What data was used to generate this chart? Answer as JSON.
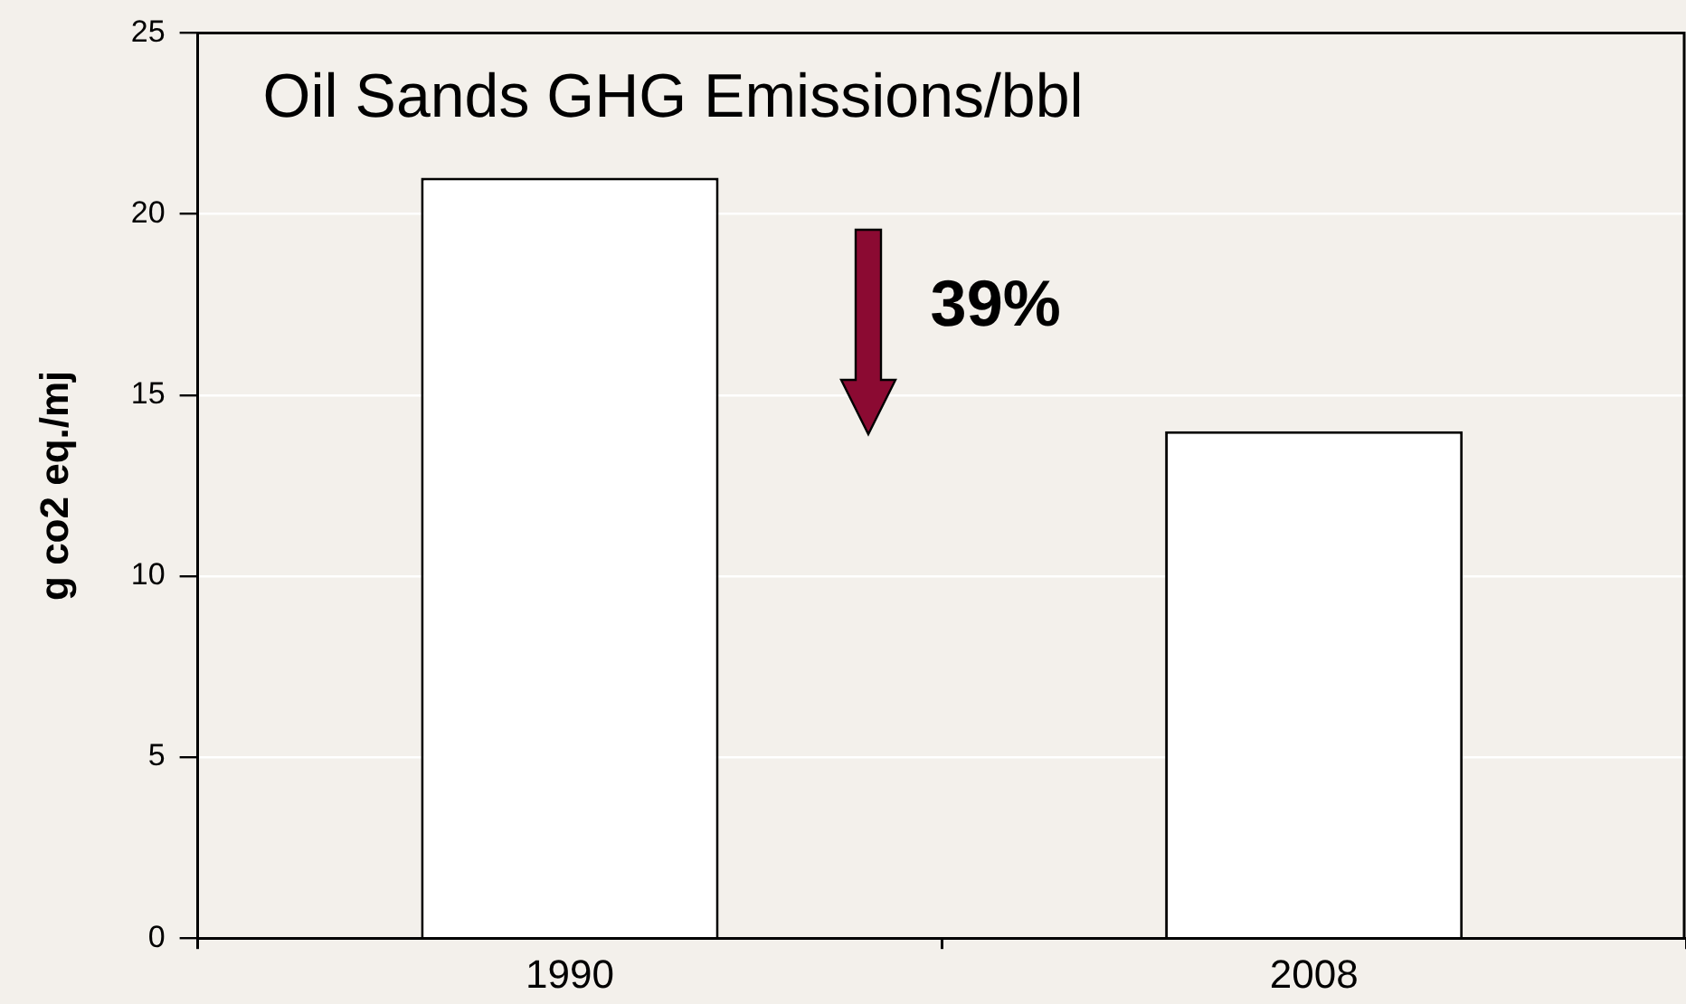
{
  "chart_data": {
    "type": "bar",
    "title": "Oil Sands GHG Emissions/bbl",
    "ylabel": "g co2 eq./mj",
    "categories": [
      "1990",
      "2008"
    ],
    "values": [
      21,
      14
    ],
    "color": "#ffffff",
    "ylim": [
      0,
      25
    ],
    "yticks": [
      0,
      5,
      10,
      15,
      20,
      25
    ],
    "grid": "y",
    "legend": false,
    "annotations": [
      "39%"
    ]
  }
}
